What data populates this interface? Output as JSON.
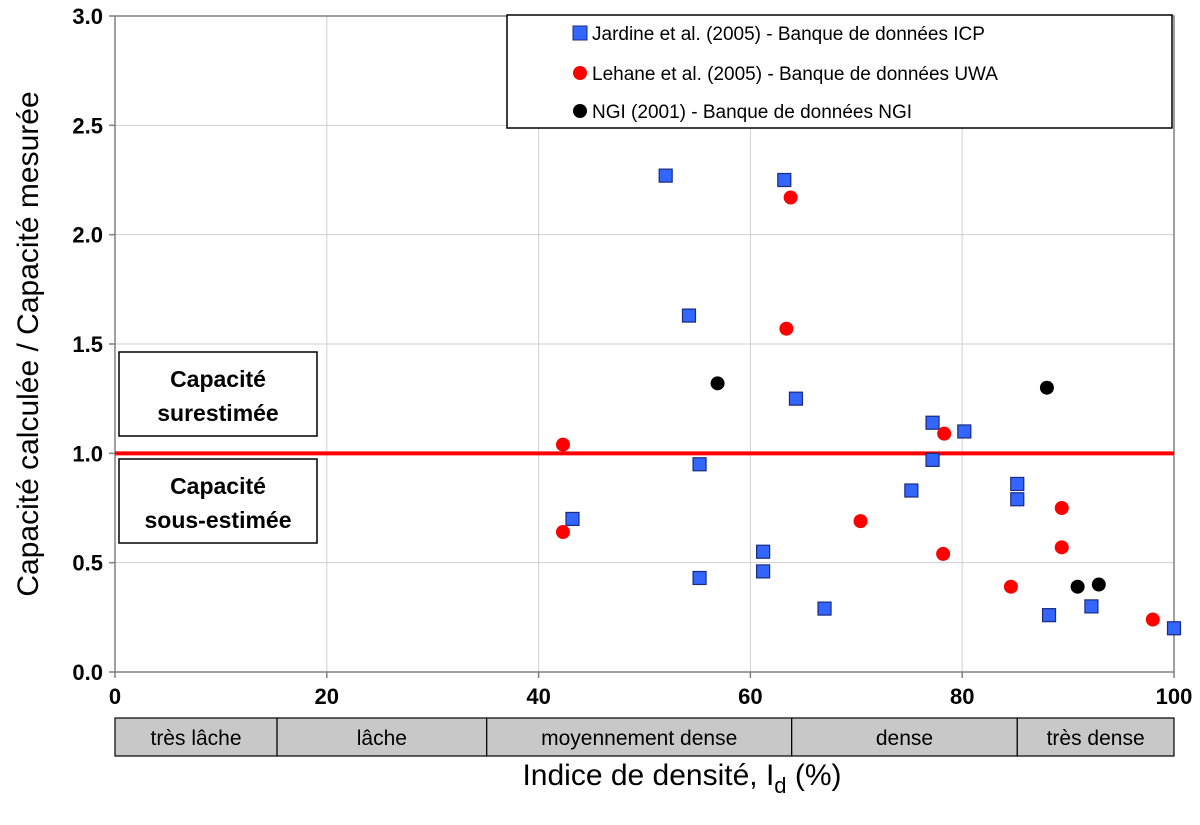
{
  "chart_data": {
    "type": "scatter",
    "xlabel": "Indice de densité, I",
    "xlabel_sub": "d",
    "xlabel_unit": " (%)",
    "ylabel": "Capacité calculée / Capacité  mesurée",
    "xlim": [
      0,
      100
    ],
    "ylim": [
      0,
      3
    ],
    "xticks": [
      "0",
      "20",
      "40",
      "60",
      "80",
      "100"
    ],
    "yticks": [
      "0.0",
      "0.5",
      "1.0",
      "1.5",
      "2.0",
      "2.5",
      "3.0"
    ],
    "grid": true,
    "legend_position": "top-right",
    "series": [
      {
        "name": "Jardine et al. (2005) - Banque de données ICP",
        "marker": "square",
        "color": "#3366ff",
        "points": [
          [
            52.0,
            2.27
          ],
          [
            63.2,
            2.25
          ],
          [
            54.2,
            1.63
          ],
          [
            64.3,
            1.25
          ],
          [
            77.2,
            1.14
          ],
          [
            80.2,
            1.1
          ],
          [
            55.2,
            0.95
          ],
          [
            77.2,
            0.97
          ],
          [
            75.2,
            0.83
          ],
          [
            85.2,
            0.86
          ],
          [
            85.2,
            0.79
          ],
          [
            43.2,
            0.7
          ],
          [
            61.2,
            0.55
          ],
          [
            61.2,
            0.46
          ],
          [
            55.2,
            0.43
          ],
          [
            67.0,
            0.29
          ],
          [
            88.2,
            0.26
          ],
          [
            92.2,
            0.3
          ],
          [
            100.0,
            0.2
          ]
        ]
      },
      {
        "name": "Lehane et al. (2005) - Banque de données UWA",
        "marker": "circle",
        "color": "#ff0000",
        "points": [
          [
            63.8,
            2.17
          ],
          [
            63.4,
            1.57
          ],
          [
            42.3,
            1.04
          ],
          [
            78.3,
            1.09
          ],
          [
            42.3,
            0.64
          ],
          [
            70.4,
            0.69
          ],
          [
            78.2,
            0.54
          ],
          [
            84.6,
            0.39
          ],
          [
            89.4,
            0.75
          ],
          [
            89.4,
            0.57
          ],
          [
            98.0,
            0.24
          ]
        ]
      },
      {
        "name": "NGI (2001) - Banque de données NGI",
        "marker": "circle",
        "color": "#000000",
        "points": [
          [
            56.9,
            1.32
          ],
          [
            88.0,
            1.3
          ],
          [
            90.9,
            0.39
          ],
          [
            92.9,
            0.4
          ]
        ]
      }
    ],
    "reference_line": {
      "y": 1.0,
      "color": "#ff0000"
    },
    "annotations": {
      "over": [
        "Capacité",
        "surestimée"
      ],
      "under": [
        "Capacité",
        "sous-estimée"
      ]
    },
    "density_classes": [
      {
        "label": "très lâche",
        "from": 0,
        "to": 15.3
      },
      {
        "label": "lâche",
        "from": 15.3,
        "to": 35.1
      },
      {
        "label": "moyennement dense",
        "from": 35.1,
        "to": 63.9
      },
      {
        "label": "dense",
        "from": 63.9,
        "to": 85.2
      },
      {
        "label": "très dense",
        "from": 85.2,
        "to": 100
      }
    ]
  }
}
